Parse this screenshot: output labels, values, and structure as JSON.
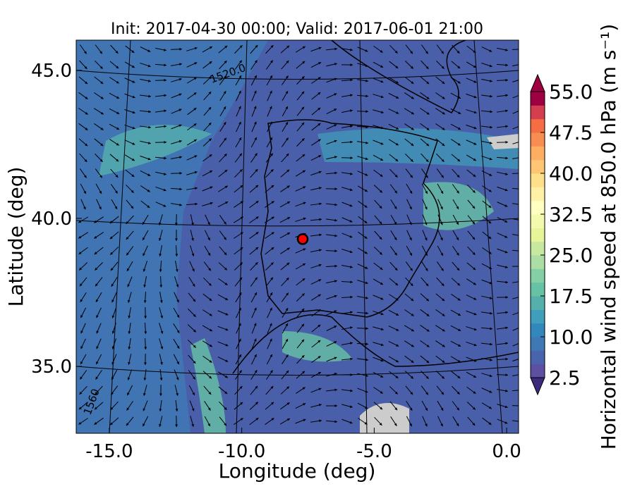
{
  "chart_data": {
    "type": "map",
    "title": "Init: 2017-04-30 00:00; Valid: 2017-06-01 21:00",
    "x_label": "Longitude (deg)",
    "y_label": "Latitude (deg)",
    "xlim": [
      -16.25,
      0.45
    ],
    "xticks": [
      {
        "value": -15,
        "label": "-15.0"
      },
      {
        "value": -10,
        "label": "-10.0"
      },
      {
        "value": -5,
        "label": "-5.0"
      },
      {
        "value": 0,
        "label": "0.0"
      }
    ],
    "ylim": [
      32.74,
      46.02
    ],
    "yticks": [
      {
        "value": 35,
        "label": "35.0"
      },
      {
        "value": 40,
        "label": "40.0"
      },
      {
        "value": 45,
        "label": "45.0"
      }
    ],
    "marker": {
      "x": -7.7,
      "y": 39.3,
      "color": "#ff0000"
    },
    "annotations": [
      "1520.0",
      "1560"
    ],
    "colorbar": {
      "label": "Horizontal wind speed at 850.0 hPa (m s⁻¹)",
      "lim": [
        2.5,
        55
      ],
      "ticks": [
        2.5,
        {
          "value": 10,
          "label": "10.0"
        },
        17.5,
        {
          "value": 25,
          "label": "25.0"
        },
        32.5,
        {
          "value": 40,
          "label": "40.0"
        },
        47.5,
        {
          "value": 55,
          "label": "55.0"
        }
      ],
      "colors": [
        "#5e4fa2",
        "#4a63ad",
        "#3f79b5",
        "#3288bd",
        "#3f9eb9",
        "#55b0ac",
        "#66c2a5",
        "#84cfa5",
        "#abdda4",
        "#c7e89f",
        "#e6f598",
        "#f4faad",
        "#ffffbf",
        "#fef0a5",
        "#fee08b",
        "#fdc574",
        "#fdae61",
        "#f88d52",
        "#f46d43",
        "#d53e4f",
        "#9e0142"
      ]
    }
  }
}
